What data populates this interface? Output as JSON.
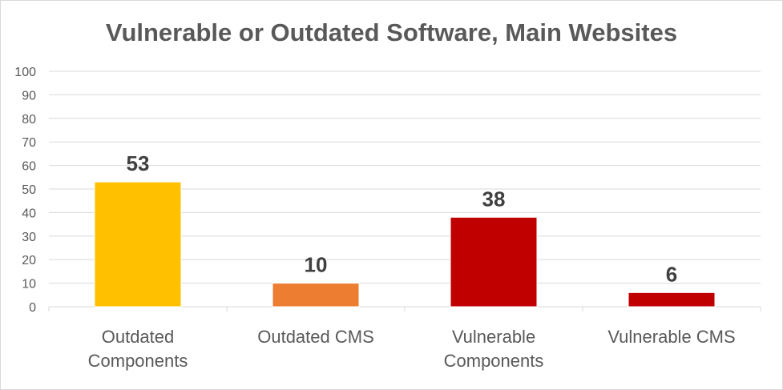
{
  "chart_data": {
    "type": "bar",
    "title": "Vulnerable or Outdated Software, Main Websites",
    "categories": [
      [
        "Outdated",
        "Components"
      ],
      [
        "Outdated CMS"
      ],
      [
        "Vulnerable",
        "Components"
      ],
      [
        "Vulnerable CMS"
      ]
    ],
    "values": [
      53,
      10,
      38,
      6
    ],
    "colors": [
      "#FFC000",
      "#ED7D31",
      "#C00000",
      "#C00000"
    ],
    "data_labels": [
      "53",
      "10",
      "38",
      "6"
    ],
    "ylim": [
      0,
      100
    ],
    "yticks": [
      0,
      10,
      20,
      30,
      40,
      50,
      60,
      70,
      80,
      90,
      100
    ],
    "grid": true,
    "xlabel": "",
    "ylabel": ""
  }
}
